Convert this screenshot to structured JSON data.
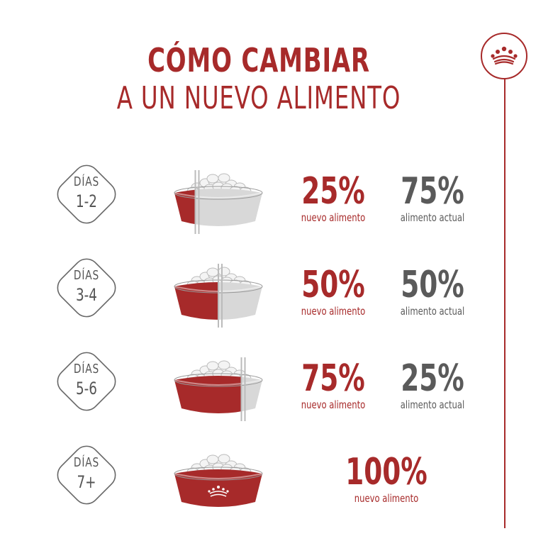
{
  "title": {
    "line1": "CÓMO CAMBIAR",
    "line2": "A UN NUEVO ALIMENTO"
  },
  "brand": {
    "logo_icon": "crown-icon",
    "accent": "#a72a2a"
  },
  "colors": {
    "new_food": "#a72a2a",
    "current_food": "#5a5a5a"
  },
  "new_label": "nuevo alimento",
  "current_label": "alimento actual",
  "steps": [
    {
      "days_word": "DÍAS",
      "days": "1-2",
      "new_pct": "25%",
      "current_pct": "75%",
      "new_fraction": 0.25
    },
    {
      "days_word": "DÍAS",
      "days": "3-4",
      "new_pct": "50%",
      "current_pct": "50%",
      "new_fraction": 0.5
    },
    {
      "days_word": "DÍAS",
      "days": "5-6",
      "new_pct": "75%",
      "current_pct": "25%",
      "new_fraction": 0.75
    },
    {
      "days_word": "DÍAS",
      "days": "7+",
      "new_pct": "100%",
      "new_fraction": 1.0
    }
  ]
}
